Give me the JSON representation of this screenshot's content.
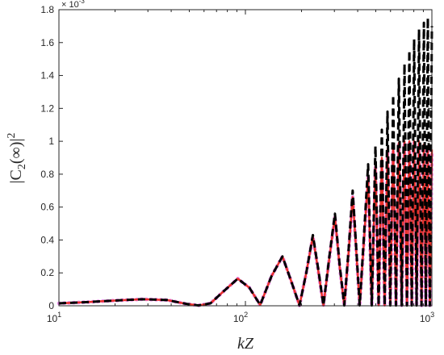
{
  "chart_data": {
    "type": "line",
    "xlabel": "kZ",
    "ylabel_parts": [
      "|C",
      "2",
      "(∞)|",
      "2"
    ],
    "y_multiplier": {
      "base": "× 10",
      "exponent": "-3"
    },
    "xscale": "log",
    "xlim": [
      10,
      1000
    ],
    "xticks": [
      {
        "value": 10,
        "label": "10",
        "exponent": "1"
      },
      {
        "value": 100,
        "label": "10",
        "exponent": "2"
      },
      {
        "value": 1000,
        "label": "10",
        "exponent": "3"
      }
    ],
    "xminorticks": [
      20,
      30,
      40,
      50,
      60,
      70,
      80,
      90,
      200,
      300,
      400,
      500,
      600,
      700,
      800,
      900
    ],
    "ylim": [
      0,
      1.8
    ],
    "yticks": [
      0,
      0.2,
      0.4,
      0.6,
      0.8,
      1,
      1.2,
      1.4,
      1.6,
      1.8
    ],
    "x": [
      10,
      14,
      20,
      28,
      38,
      48,
      56,
      65,
      75,
      91,
      105,
      120,
      138,
      158,
      176,
      195,
      212,
      230,
      246,
      262,
      282,
      302,
      320,
      339,
      358,
      376,
      393,
      410,
      432,
      455,
      476,
      498,
      518,
      539,
      558,
      578,
      598,
      620,
      642,
      665,
      689,
      713,
      735,
      757,
      780,
      803,
      828,
      853,
      880,
      906,
      928,
      951,
      975,
      1000
    ],
    "series": [
      {
        "color": "#f08af0",
        "dash": "dotted",
        "values": [
          0.015,
          0.022,
          0.032,
          0.04,
          0.035,
          0.012,
          0.002,
          0.015,
          0.08,
          0.165,
          0.11,
          0.005,
          0.18,
          0.3,
          0.15,
          0.002,
          0.2,
          0.42,
          0.21,
          0.002,
          0.29,
          0.54,
          0.24,
          0.002,
          0.33,
          0.66,
          0.33,
          0.002,
          0.39,
          0.78,
          0.002,
          0.84,
          0.002,
          0.89,
          0.002,
          0.94,
          0.002,
          0.96,
          0.002,
          0.98,
          0.002,
          0.99,
          0.002,
          0.99,
          0.002,
          0.99,
          0.002,
          0.98,
          0.002,
          0.97,
          0.002,
          0.96,
          0.002,
          0.94
        ]
      },
      {
        "color": "#e8312a",
        "dash": "solid",
        "values": [
          0.015,
          0.022,
          0.032,
          0.04,
          0.035,
          0.012,
          0.002,
          0.015,
          0.08,
          0.165,
          0.11,
          0.005,
          0.18,
          0.3,
          0.15,
          0.002,
          0.2,
          0.42,
          0.21,
          0.002,
          0.29,
          0.54,
          0.24,
          0.002,
          0.33,
          0.66,
          0.33,
          0.002,
          0.39,
          0.78,
          0.002,
          0.85,
          0.002,
          0.9,
          0.002,
          0.95,
          0.002,
          0.97,
          0.002,
          0.99,
          0.002,
          1.0,
          0.002,
          1.0,
          0.002,
          1.0,
          0.002,
          1.0,
          0.002,
          0.98,
          0.002,
          0.97,
          0.002,
          0.95
        ]
      },
      {
        "color": "#000000",
        "dash": "dashed",
        "values": [
          0.015,
          0.022,
          0.032,
          0.04,
          0.035,
          0.012,
          0.002,
          0.015,
          0.08,
          0.165,
          0.11,
          0.005,
          0.18,
          0.3,
          0.15,
          0.002,
          0.2,
          0.43,
          0.22,
          0.002,
          0.3,
          0.56,
          0.25,
          0.002,
          0.35,
          0.7,
          0.35,
          0.002,
          0.42,
          0.86,
          0.002,
          0.97,
          0.002,
          1.07,
          0.002,
          1.18,
          0.002,
          1.28,
          0.002,
          1.38,
          0.002,
          1.47,
          0.002,
          1.55,
          0.002,
          1.62,
          0.002,
          1.68,
          0.002,
          1.72,
          0.002,
          1.75,
          0.002,
          1.7
        ]
      }
    ]
  }
}
